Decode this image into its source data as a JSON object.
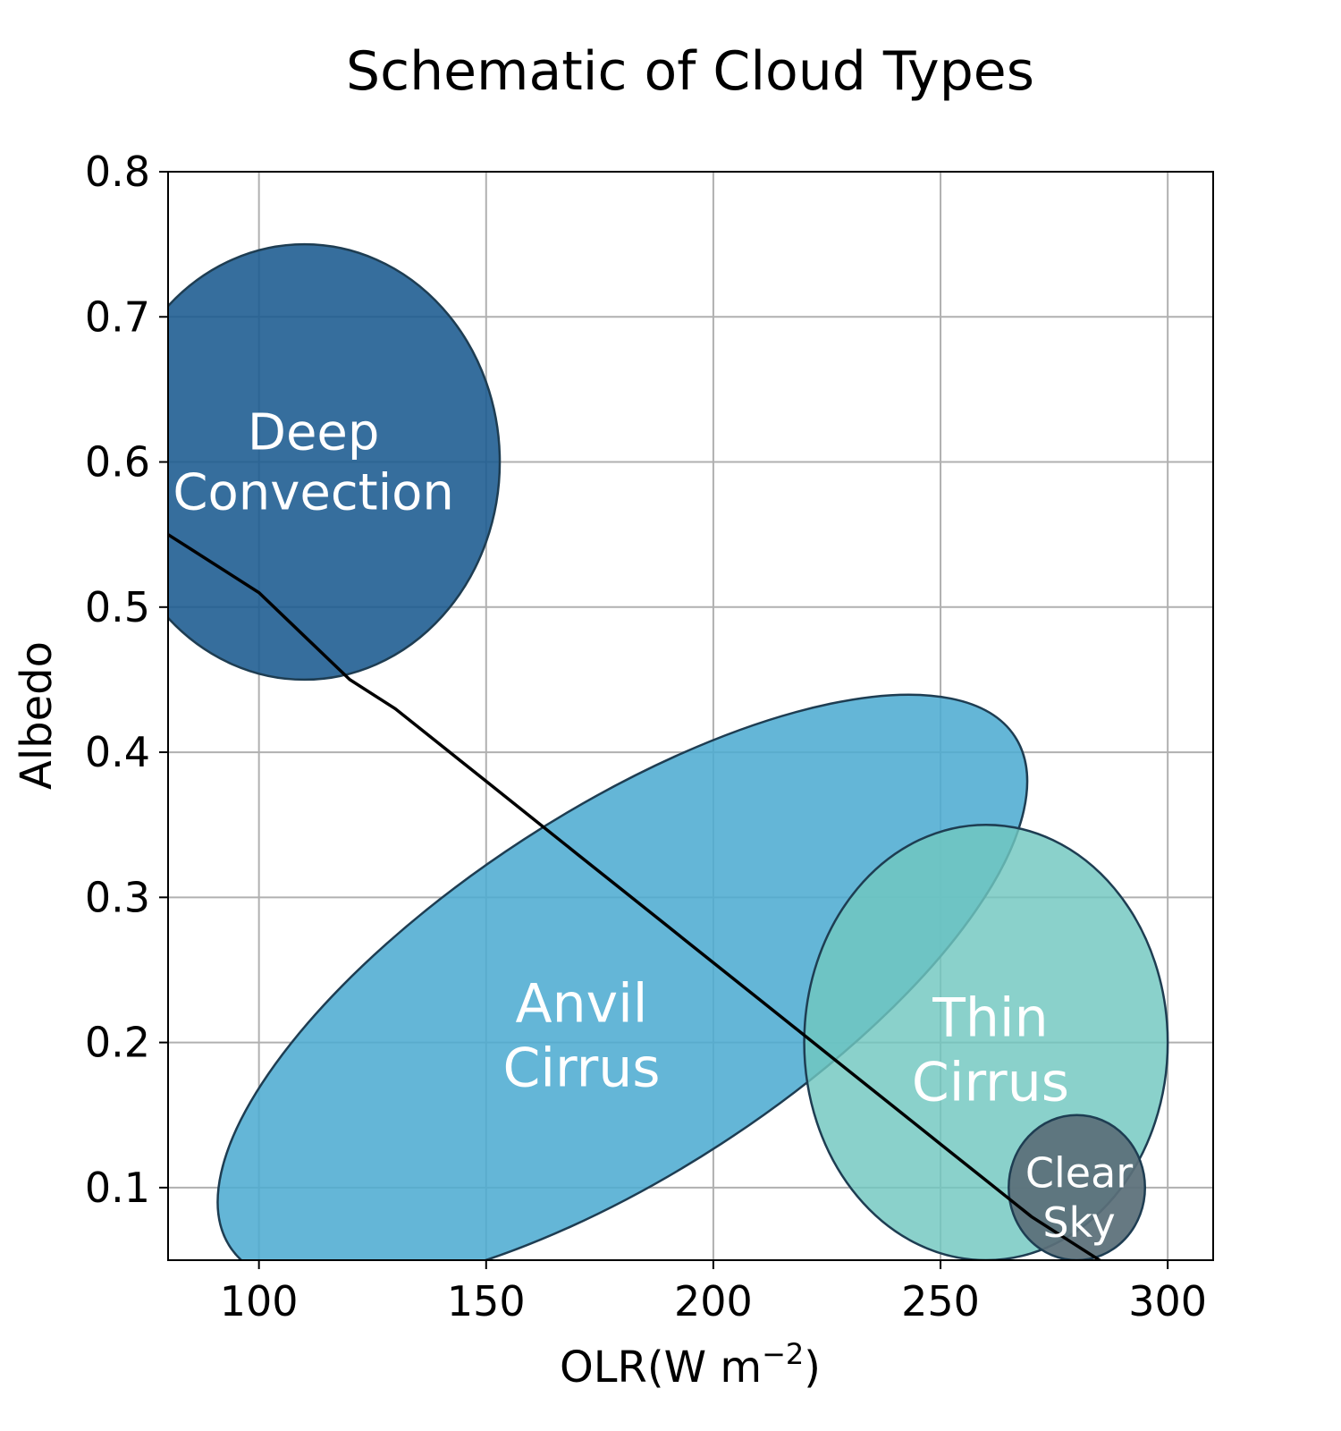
{
  "chart_data": {
    "type": "schematic",
    "title": "Schematic of Cloud Types",
    "xlabel": "OLR(W m",
    "xlabel_exponent": "−2",
    "xlabel_close": ")",
    "ylabel": "Albedo",
    "xlim": [
      80,
      310
    ],
    "ylim": [
      0.05,
      0.8
    ],
    "grid": true,
    "x_ticks": [
      100,
      150,
      200,
      250,
      300
    ],
    "x_tick_labels": [
      "100",
      "150",
      "200",
      "250",
      "300"
    ],
    "y_ticks": [
      0.1,
      0.2,
      0.3,
      0.4,
      0.5,
      0.6,
      0.7,
      0.8
    ],
    "y_tick_labels": [
      "0.1",
      "0.2",
      "0.3",
      "0.4",
      "0.5",
      "0.6",
      "0.7",
      "0.8"
    ],
    "regions": [
      {
        "label_lines": [
          "Deep",
          "Convection"
        ],
        "center": [
          110,
          0.6
        ],
        "semi_axis_x": 43,
        "semi_axis_y": 0.15,
        "rotation_deg": 0,
        "fill": "#1a5a8f",
        "fill_opacity": 0.88,
        "label_anchor": [
          112,
          0.6
        ],
        "label_size": 56
      },
      {
        "label_lines": [
          "Anvil",
          "Cirrus"
        ],
        "center": [
          180,
          0.235
        ],
        "semi_axis_x": 103,
        "semi_axis_y": 0.125,
        "rotation_deg": -33,
        "fill": "#4dabd1",
        "fill_opacity": 0.87,
        "label_anchor": [
          171,
          0.205
        ],
        "label_size": 60
      },
      {
        "label_lines": [
          "Thin",
          "Cirrus"
        ],
        "center": [
          260,
          0.2
        ],
        "semi_axis_x": 40,
        "semi_axis_y": 0.15,
        "rotation_deg": 0,
        "fill": "#70c7c0",
        "fill_opacity": 0.82,
        "label_anchor": [
          261,
          0.195
        ],
        "label_size": 60
      },
      {
        "label_lines": [
          "Clear",
          "Sky"
        ],
        "center": [
          280,
          0.1
        ],
        "semi_axis_x": 15,
        "semi_axis_y": 0.05,
        "rotation_deg": 0,
        "fill": "#5a6f78",
        "fill_opacity": 0.93,
        "label_anchor": [
          280.5,
          0.093
        ],
        "label_size": 46
      }
    ],
    "line": {
      "x": [
        80,
        85,
        90,
        100,
        110,
        120,
        130,
        140,
        150,
        160,
        170,
        180,
        190,
        200,
        210,
        220,
        230,
        240,
        250,
        260,
        270,
        280,
        290
      ],
      "y": [
        0.55,
        0.54,
        0.53,
        0.51,
        0.48,
        0.45,
        0.43,
        0.405,
        0.38,
        0.355,
        0.33,
        0.305,
        0.28,
        0.255,
        0.23,
        0.205,
        0.18,
        0.155,
        0.13,
        0.105,
        0.08,
        0.06,
        0.04
      ],
      "color": "#000000"
    }
  }
}
